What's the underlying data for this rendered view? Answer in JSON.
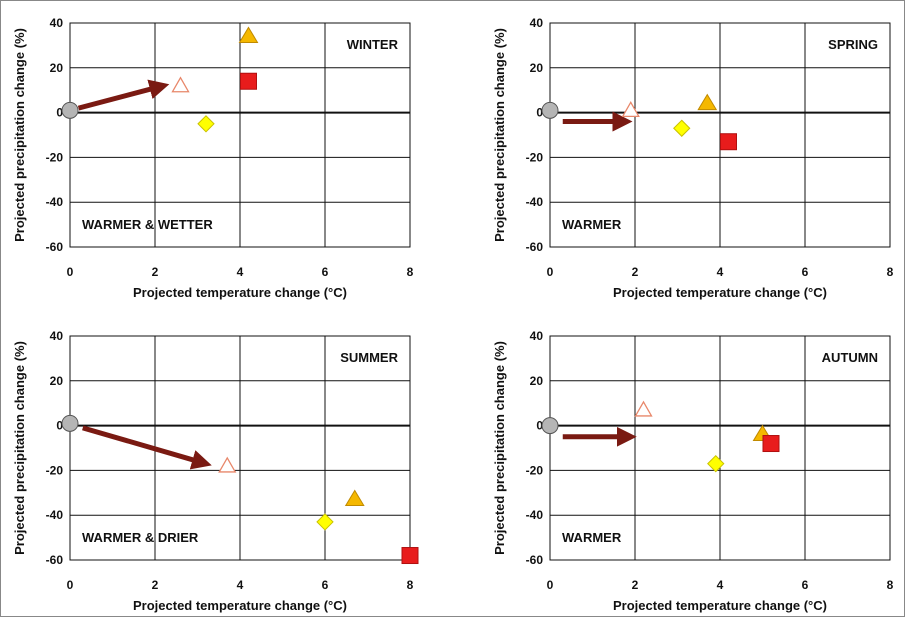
{
  "colors": {
    "grid": "#111111",
    "arrow": "#7a1a12",
    "baseline_fill": "#b5b5b5",
    "open_triangle": "#e8876a",
    "triangle_fill": "#f5b800",
    "diamond_fill": "#ffff00",
    "square_fill": "#e81c1c",
    "square_stroke": "#b01010"
  },
  "chart_data": [
    {
      "type": "scatter",
      "panel_title": "WINTER",
      "annotation": "WARMER & WETTER",
      "xlabel": "Projected temperature change (°C)",
      "ylabel": "Projected precipitation change (%)",
      "xlim": [
        0,
        8
      ],
      "ylim": [
        -60,
        40
      ],
      "xticks": [
        "0",
        "2",
        "4",
        "6",
        "8"
      ],
      "yticks": [
        "40",
        "20",
        "0",
        "-20",
        "-40",
        "-60"
      ],
      "grid": true,
      "baseline": {
        "x": 0,
        "y": 1
      },
      "arrow": {
        "from": [
          0.2,
          2
        ],
        "to": [
          2.2,
          12
        ]
      },
      "points": [
        {
          "marker": "open-triangle",
          "x": 2.6,
          "y": 12
        },
        {
          "marker": "diamond",
          "x": 3.2,
          "y": -5
        },
        {
          "marker": "triangle",
          "x": 4.2,
          "y": 34
        },
        {
          "marker": "square",
          "x": 4.2,
          "y": 14
        }
      ]
    },
    {
      "type": "scatter",
      "panel_title": "SPRING",
      "annotation": "WARMER",
      "xlabel": "Projected temperature change (°C)",
      "ylabel": "Projected precipitation change (%)",
      "xlim": [
        0,
        8
      ],
      "ylim": [
        -60,
        40
      ],
      "xticks": [
        "0",
        "2",
        "4",
        "6",
        "8"
      ],
      "yticks": [
        "40",
        "20",
        "0",
        "-20",
        "-40",
        "-60"
      ],
      "grid": true,
      "baseline": {
        "x": 0,
        "y": 1
      },
      "arrow": {
        "from": [
          0.3,
          -4
        ],
        "to": [
          1.8,
          -4
        ]
      },
      "points": [
        {
          "marker": "open-triangle",
          "x": 1.9,
          "y": 1
        },
        {
          "marker": "diamond",
          "x": 3.1,
          "y": -7
        },
        {
          "marker": "triangle",
          "x": 3.7,
          "y": 4
        },
        {
          "marker": "square",
          "x": 4.2,
          "y": -13
        }
      ]
    },
    {
      "type": "scatter",
      "panel_title": "SUMMER",
      "annotation": "WARMER & DRIER",
      "xlabel": "Projected temperature change (°C)",
      "ylabel": "Projected precipitation change (%)",
      "xlim": [
        0,
        8
      ],
      "ylim": [
        -60,
        40
      ],
      "xticks": [
        "0",
        "2",
        "4",
        "6",
        "8"
      ],
      "yticks": [
        "40",
        "20",
        "0",
        "-20",
        "-40",
        "-60"
      ],
      "grid": true,
      "baseline": {
        "x": 0,
        "y": 1
      },
      "arrow": {
        "from": [
          0.3,
          -1
        ],
        "to": [
          3.2,
          -17
        ]
      },
      "points": [
        {
          "marker": "open-triangle",
          "x": 3.7,
          "y": -18
        },
        {
          "marker": "diamond",
          "x": 6.0,
          "y": -43
        },
        {
          "marker": "triangle",
          "x": 6.7,
          "y": -33
        },
        {
          "marker": "square",
          "x": 8.0,
          "y": -58
        }
      ]
    },
    {
      "type": "scatter",
      "panel_title": "AUTUMN",
      "annotation": "WARMER",
      "xlabel": "Projected temperature change (°C)",
      "ylabel": "Projected precipitation change (%)",
      "xlim": [
        0,
        8
      ],
      "ylim": [
        -60,
        40
      ],
      "xticks": [
        "0",
        "2",
        "4",
        "6",
        "8"
      ],
      "yticks": [
        "40",
        "20",
        "0",
        "-20",
        "-40",
        "-60"
      ],
      "grid": true,
      "baseline": {
        "x": 0,
        "y": 0
      },
      "arrow": {
        "from": [
          0.3,
          -5
        ],
        "to": [
          1.9,
          -5
        ]
      },
      "points": [
        {
          "marker": "open-triangle",
          "x": 2.2,
          "y": 7
        },
        {
          "marker": "diamond",
          "x": 3.9,
          "y": -17
        },
        {
          "marker": "triangle",
          "x": 5.0,
          "y": -4
        },
        {
          "marker": "square",
          "x": 5.2,
          "y": -8
        }
      ]
    }
  ]
}
